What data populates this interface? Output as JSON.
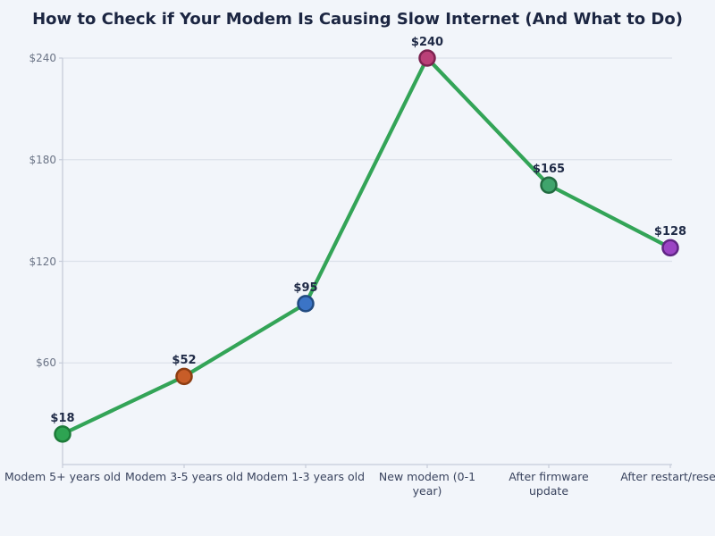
{
  "chart_data": {
    "type": "line",
    "title": "How to Check if Your Modem Is Causing Slow Internet (And What to Do)",
    "categories": [
      "Modem 5+ years old",
      "Modem 3-5 years old",
      "Modem 1-3 years old",
      "New modem (0-1\nyear)",
      "After firmware\nupdate",
      "After restart/reset"
    ],
    "values": [
      18,
      52,
      95,
      240,
      165,
      128
    ],
    "value_labels": [
      "$18",
      "$52",
      "$95",
      "$240",
      "$165",
      "$128"
    ],
    "xlabel": "",
    "ylabel": "",
    "ylim": [
      0,
      240
    ],
    "yticks": [
      {
        "value": 60,
        "label": "$60"
      },
      {
        "value": 120,
        "label": "$120"
      },
      {
        "value": 180,
        "label": "$180"
      },
      {
        "value": 240,
        "label": "$240"
      }
    ],
    "grid": "horizontal",
    "legend_position": "none",
    "line_color": "#33a457",
    "point_colors": [
      {
        "fill": "#2ea452",
        "stroke": "#1d7b39"
      },
      {
        "fill": "#c85d28",
        "stroke": "#8d3d12"
      },
      {
        "fill": "#3b74c6",
        "stroke": "#214a80"
      },
      {
        "fill": "#ba4078",
        "stroke": "#7c2350"
      },
      {
        "fill": "#3fa46c",
        "stroke": "#226b41"
      },
      {
        "fill": "#9b44c4",
        "stroke": "#5f2583"
      }
    ]
  },
  "colors": {
    "background": "#f2f5fa",
    "grid": "#dce1ea",
    "spine": "#c6ccd9",
    "title": "#1c2642",
    "y_tick_label": "#6b7486",
    "x_tick_label": "#39435e",
    "value_label": "#202b47"
  }
}
